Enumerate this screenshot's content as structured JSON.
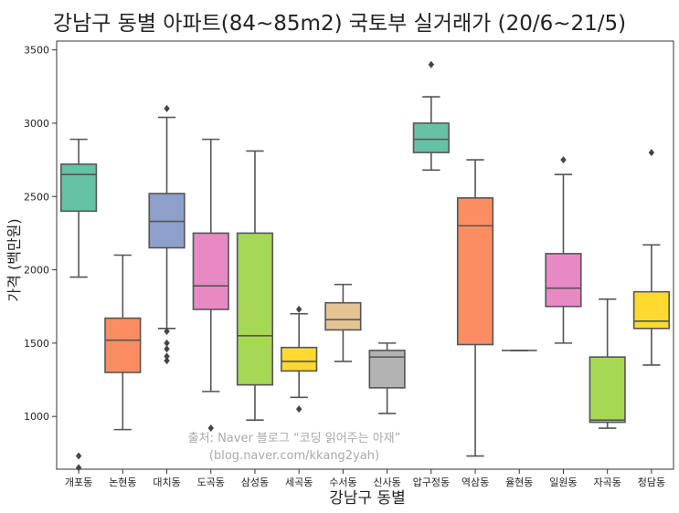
{
  "chart_data": {
    "type": "box",
    "title": "강남구 동별 아파트(84~85m2) 국토부 실거래가 (20/6~21/5)",
    "xlabel": "강남구 동별",
    "ylabel": "가격 (백만원)",
    "ylim": [
      640,
      3560
    ],
    "yticks": [
      1000,
      1500,
      2000,
      2500,
      3000,
      3500
    ],
    "grid": false,
    "watermark": [
      "출처: Naver 블로그 “코딩 읽어주는 아재”",
      "(blog.naver.com/kkang2yah)"
    ],
    "boxes": [
      {
        "name": "개포동",
        "color": "#66c2a5",
        "whislo": 1950,
        "q1": 2400,
        "med": 2650,
        "q3": 2720,
        "whishi": 2890,
        "fliers": [
          730,
          650
        ]
      },
      {
        "name": "논현동",
        "color": "#fc8d62",
        "whislo": 910,
        "q1": 1300,
        "med": 1520,
        "q3": 1670,
        "whishi": 2100,
        "fliers": []
      },
      {
        "name": "대치동",
        "color": "#8da0cb",
        "whislo": 1600,
        "q1": 2150,
        "med": 2330,
        "q3": 2520,
        "whishi": 3040,
        "fliers": [
          3100,
          1580,
          1500,
          1460,
          1410,
          1380
        ]
      },
      {
        "name": "도곡동",
        "color": "#e78ac3",
        "whislo": 1170,
        "q1": 1730,
        "med": 1890,
        "q3": 2250,
        "whishi": 2890,
        "fliers": [
          920
        ]
      },
      {
        "name": "삼성동",
        "color": "#a6d854",
        "whislo": 975,
        "q1": 1215,
        "med": 1550,
        "q3": 2250,
        "whishi": 2810,
        "fliers": []
      },
      {
        "name": "세곡동",
        "color": "#ffd92f",
        "whislo": 1130,
        "q1": 1310,
        "med": 1375,
        "q3": 1470,
        "whishi": 1700,
        "fliers": [
          1730,
          1050
        ]
      },
      {
        "name": "수서동",
        "color": "#e5c494",
        "whislo": 1375,
        "q1": 1590,
        "med": 1660,
        "q3": 1775,
        "whishi": 1900,
        "fliers": []
      },
      {
        "name": "신사동",
        "color": "#b3b3b3",
        "whislo": 1020,
        "q1": 1195,
        "med": 1405,
        "q3": 1450,
        "whishi": 1500,
        "fliers": []
      },
      {
        "name": "압구정동",
        "color": "#66c2a5",
        "whislo": 2680,
        "q1": 2800,
        "med": 2890,
        "q3": 3000,
        "whishi": 3180,
        "fliers": [
          3400
        ]
      },
      {
        "name": "역삼동",
        "color": "#fc8d62",
        "whislo": 730,
        "q1": 1490,
        "med": 2300,
        "q3": 2490,
        "whishi": 2750,
        "fliers": []
      },
      {
        "name": "율현동",
        "color": "#8da0cb",
        "whislo": 1450,
        "q1": 1450,
        "med": 1450,
        "q3": 1450,
        "whishi": 1450,
        "fliers": []
      },
      {
        "name": "일원동",
        "color": "#e78ac3",
        "whislo": 1500,
        "q1": 1750,
        "med": 1875,
        "q3": 2110,
        "whishi": 2650,
        "fliers": [
          2750
        ]
      },
      {
        "name": "자곡동",
        "color": "#a6d854",
        "whislo": 920,
        "q1": 960,
        "med": 975,
        "q3": 1405,
        "whishi": 1800,
        "fliers": []
      },
      {
        "name": "청담동",
        "color": "#ffd92f",
        "whislo": 1350,
        "q1": 1600,
        "med": 1650,
        "q3": 1850,
        "whishi": 2170,
        "fliers": [
          2800
        ]
      }
    ]
  }
}
